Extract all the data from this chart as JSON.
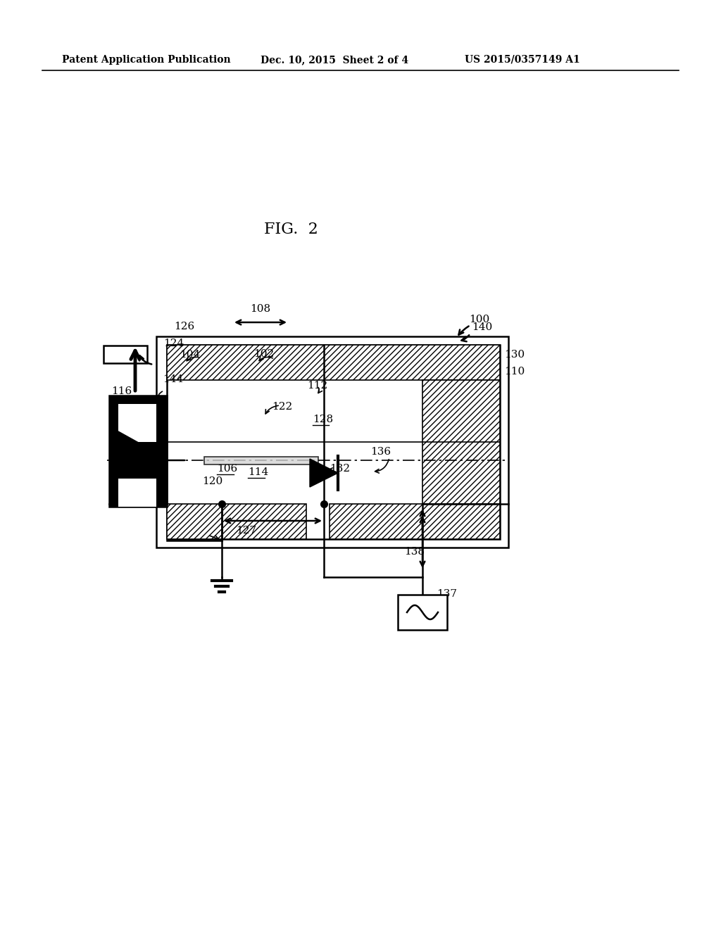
{
  "bg_color": "#ffffff",
  "header_left": "Patent Application Publication",
  "header_mid": "Dec. 10, 2015  Sheet 2 of 4",
  "header_right": "US 2015/0357149 A1",
  "fig_label": "FIG.  2"
}
